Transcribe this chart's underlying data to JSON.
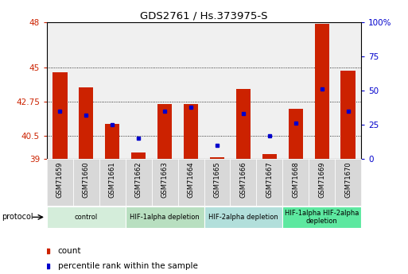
{
  "title": "GDS2761 / Hs.373975-S",
  "samples": [
    "GSM71659",
    "GSM71660",
    "GSM71661",
    "GSM71662",
    "GSM71663",
    "GSM71664",
    "GSM71665",
    "GSM71666",
    "GSM71667",
    "GSM71668",
    "GSM71669",
    "GSM71670"
  ],
  "count_values": [
    44.7,
    43.7,
    41.3,
    39.4,
    42.6,
    42.6,
    39.1,
    43.6,
    39.3,
    42.3,
    47.9,
    44.8
  ],
  "percentile_values": [
    35,
    32,
    25,
    15,
    35,
    38,
    10,
    33,
    17,
    26,
    51,
    35
  ],
  "ylim_left": [
    39,
    48
  ],
  "ylim_right": [
    0,
    100
  ],
  "yticks_left": [
    39,
    40.5,
    42.75,
    45,
    48
  ],
  "yticks_right": [
    0,
    25,
    50,
    75,
    100
  ],
  "bar_color": "#cc2200",
  "dot_color": "#0000cc",
  "groups": [
    {
      "label": "control",
      "start": 0,
      "end": 3,
      "color": "#d4edda"
    },
    {
      "label": "HIF-1alpha depletion",
      "start": 3,
      "end": 6,
      "color": "#b8dfc0"
    },
    {
      "label": "HIF-2alpha depletion",
      "start": 6,
      "end": 9,
      "color": "#b2dfdb"
    },
    {
      "label": "HIF-1alpha HIF-2alpha\ndepletion",
      "start": 9,
      "end": 12,
      "color": "#5de8a0"
    }
  ],
  "protocol_label": "protocol",
  "legend_count_label": "count",
  "legend_pct_label": "percentile rank within the sample",
  "grid_lines": [
    40.5,
    42.75,
    45
  ]
}
